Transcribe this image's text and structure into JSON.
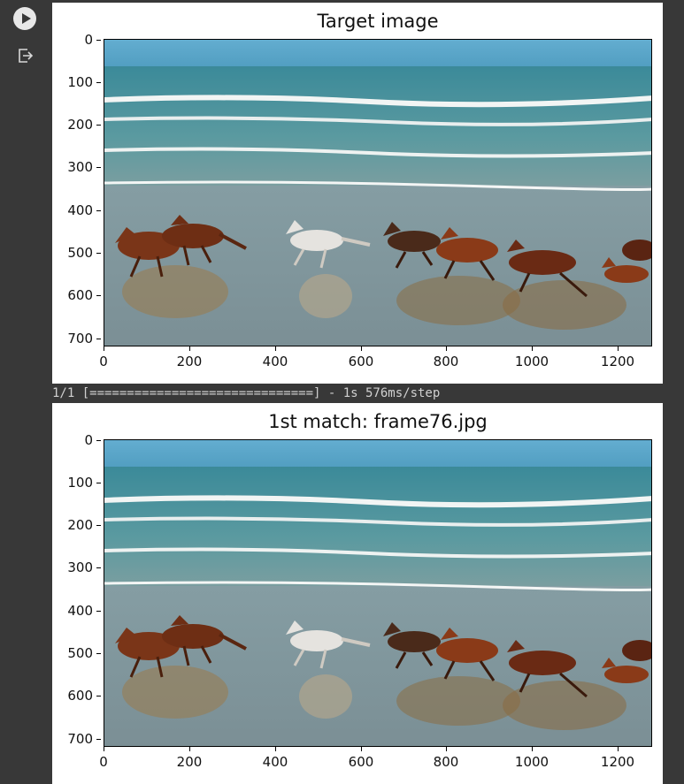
{
  "toolbar": {
    "run_icon": "play-circle-icon",
    "output_icon": "output-exit-icon"
  },
  "figures": [
    {
      "title": "Target image",
      "yticks": [
        "0",
        "100",
        "200",
        "300",
        "400",
        "500",
        "600",
        "700"
      ],
      "xticks": [
        "0",
        "200",
        "400",
        "600",
        "800",
        "1000",
        "1200"
      ]
    },
    {
      "title": "1st match: frame76.jpg",
      "yticks": [
        "0",
        "100",
        "200",
        "300",
        "400",
        "500",
        "600",
        "700"
      ],
      "xticks": [
        "0",
        "200",
        "400",
        "600",
        "800",
        "1000",
        "1200"
      ]
    }
  ],
  "progress": {
    "text": "1/1 [==============================] - 1s 576ms/step"
  },
  "colors": {
    "background": "#383838",
    "sky": "#5aa4c4",
    "sea": "#3f8f97",
    "sand": "#7f9ea8"
  }
}
